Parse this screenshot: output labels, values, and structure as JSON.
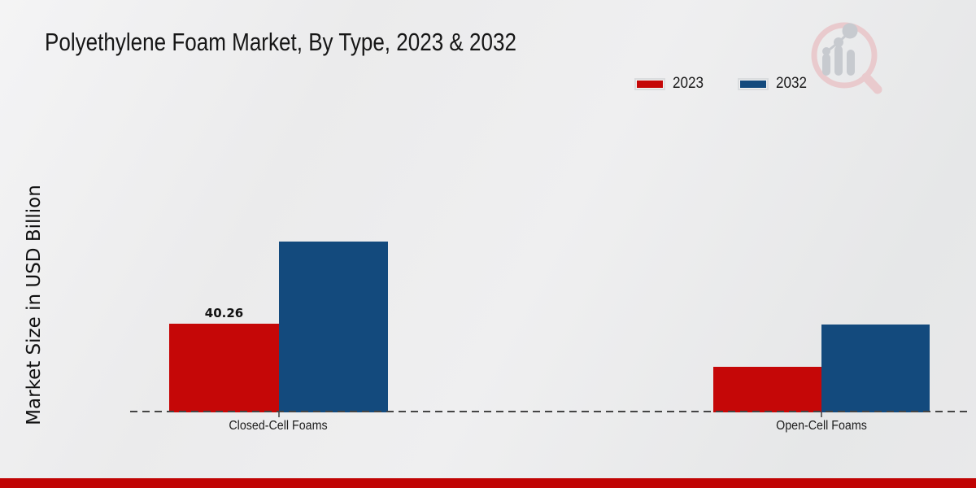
{
  "chart_data": {
    "type": "bar",
    "title": "Polyethylene Foam Market, By Type, 2023 & 2032",
    "ylabel": "Market Size in USD Billion",
    "xlabel": "",
    "categories": [
      "Closed-Cell Foams",
      "Open-Cell Foams"
    ],
    "series": [
      {
        "name": "2023",
        "color": "#c50707",
        "values": [
          40.26,
          20.7
        ],
        "labels": [
          "40.26",
          ""
        ]
      },
      {
        "name": "2032",
        "color": "#134a7d",
        "values": [
          77.5,
          39.9
        ],
        "labels": [
          "",
          ""
        ]
      }
    ],
    "ylim": [
      0,
      85
    ],
    "grid": false,
    "legend_position": "top-right",
    "baseline_style": "dashed"
  },
  "icons": {
    "watermark": "magnifier-bar-chart-logo"
  },
  "colors": {
    "footer_bar": "#c00404",
    "watermark_pink": "#e9c9cc",
    "watermark_gray": "#c6c9ce"
  }
}
